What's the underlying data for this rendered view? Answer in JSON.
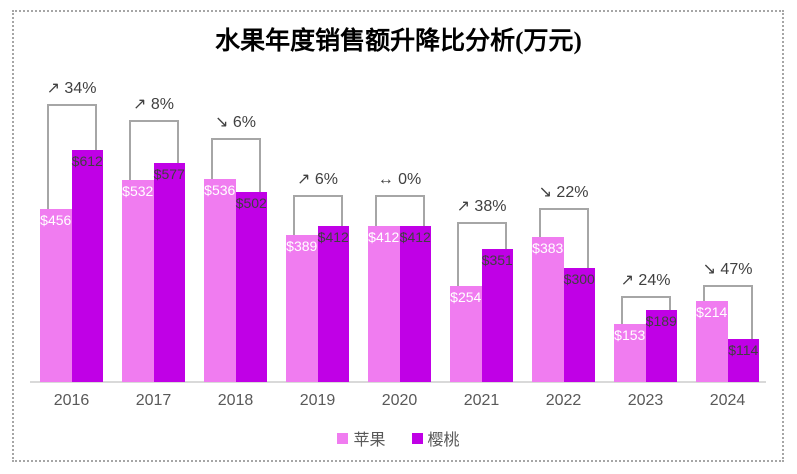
{
  "chart_data": {
    "type": "bar",
    "title": "水果年度销售额升降比分析(万元)",
    "value_prefix": "$",
    "categories": [
      "2016",
      "2017",
      "2018",
      "2019",
      "2020",
      "2021",
      "2022",
      "2023",
      "2024"
    ],
    "series": [
      {
        "key": "apple",
        "name": "苹果",
        "color": "#F07CF0",
        "label_color": "#FFFFFF",
        "values": [
          456,
          532,
          536,
          389,
          412,
          254,
          383,
          153,
          214
        ]
      },
      {
        "key": "cherry",
        "name": "樱桃",
        "color": "#C000E6",
        "label_color": "#404040",
        "values": [
          612,
          577,
          502,
          412,
          412,
          351,
          300,
          189,
          114
        ]
      }
    ],
    "annotations": [
      {
        "arrow": "↗",
        "direction": "up",
        "label": "34%"
      },
      {
        "arrow": "↗",
        "direction": "up",
        "label": "8%"
      },
      {
        "arrow": "↘",
        "direction": "down",
        "label": "6%"
      },
      {
        "arrow": "↗",
        "direction": "up",
        "label": "6%"
      },
      {
        "arrow": "↔",
        "direction": "flat",
        "label": "0%"
      },
      {
        "arrow": "↗",
        "direction": "up",
        "label": "38%"
      },
      {
        "arrow": "↘",
        "direction": "down",
        "label": "22%"
      },
      {
        "arrow": "↗",
        "direction": "up",
        "label": "24%"
      },
      {
        "arrow": "↘",
        "direction": "down",
        "label": "47%"
      }
    ],
    "legend_position": "bottom",
    "grid": false
  },
  "colors": {
    "background": "#FFFFFF",
    "border_dots": "#A6A6A6",
    "bracket": "#A6A6A6",
    "axis_line": "#D9D9D9",
    "annotation_text": "#404040",
    "category_text": "#595959",
    "legend_text": "#595959",
    "title_text": "#000000"
  }
}
